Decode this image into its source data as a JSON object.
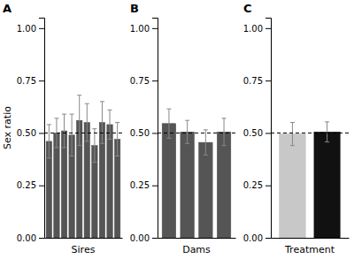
{
  "chart_data": [
    {
      "type": "bar",
      "title": "A",
      "x_label": "Sires",
      "y_label": "Sex ratio",
      "categories": [
        null,
        null,
        null,
        null,
        null,
        null,
        null,
        null,
        null,
        null
      ],
      "values": [
        0.46,
        0.5,
        0.51,
        0.49,
        0.56,
        0.55,
        0.44,
        0.55,
        0.54,
        0.47
      ],
      "errors": [
        0.08,
        0.07,
        0.08,
        0.1,
        0.12,
        0.09,
        0.08,
        0.1,
        0.07,
        0.08
      ],
      "color": "#555555",
      "reference_line": 0.5,
      "ylim": [
        0.0,
        1.05
      ],
      "yticks": [
        {
          "value": 0.0,
          "label": "0.00"
        },
        {
          "value": 0.25,
          "label": "0.25"
        },
        {
          "value": 0.5,
          "label": "0.50"
        },
        {
          "value": 0.75,
          "label": "0.75"
        },
        {
          "value": 1.0,
          "label": "1.00"
        }
      ],
      "grid": false,
      "tick_labels": "y"
    },
    {
      "type": "bar",
      "title": "B",
      "x_label": "Dams",
      "categories": [
        null,
        null,
        null,
        null
      ],
      "values": [
        0.545,
        0.505,
        0.455,
        0.505
      ],
      "errors": [
        0.07,
        0.055,
        0.06,
        0.065
      ],
      "color": "#555555",
      "reference_line": 0.5,
      "ylim": [
        0.0,
        1.05
      ],
      "yticks": [
        {
          "value": 0.0,
          "label": "0.00"
        },
        {
          "value": 0.25,
          "label": "0.25"
        },
        {
          "value": 0.5,
          "label": "0.50"
        },
        {
          "value": 0.75,
          "label": "0.75"
        },
        {
          "value": 1.0,
          "label": "1.00"
        }
      ],
      "grid": false,
      "tick_labels": "y"
    },
    {
      "type": "bar",
      "title": "C",
      "x_label": "Treatment",
      "categories": [
        null,
        null
      ],
      "values": [
        0.495,
        0.505
      ],
      "errors": [
        0.055,
        0.048
      ],
      "colors": [
        "#c8c8c8",
        "#111111"
      ],
      "reference_line": 0.5,
      "ylim": [
        0.0,
        1.05
      ],
      "yticks": [
        {
          "value": 0.0,
          "label": "0.00"
        },
        {
          "value": 0.25,
          "label": "0.25"
        },
        {
          "value": 0.5,
          "label": "0.50"
        },
        {
          "value": 0.75,
          "label": "0.75"
        },
        {
          "value": 1.0,
          "label": "1.00"
        }
      ],
      "grid": false,
      "tick_labels": "y"
    }
  ]
}
